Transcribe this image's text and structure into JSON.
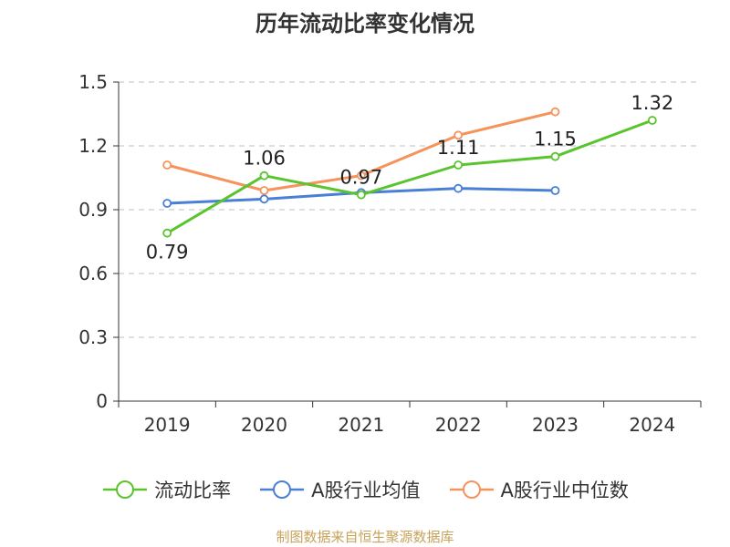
{
  "page": {
    "title": "历年流动比率变化情况",
    "footer": "制图数据来自恒生聚源数据库"
  },
  "chart_data": {
    "type": "line",
    "title": "历年流动比率变化情况",
    "xlabel": "",
    "ylabel": "",
    "categories": [
      "2019",
      "2020",
      "2021",
      "2022",
      "2023",
      "2024"
    ],
    "yticks": [
      "0",
      "0.3",
      "0.6",
      "0.9",
      "1.2",
      "1.5"
    ],
    "ylim": [
      0,
      1.5
    ],
    "grid": true,
    "legend_position": "bottom",
    "series": [
      {
        "name": "流动比率",
        "color": "#5ac42e",
        "values": [
          0.79,
          1.06,
          0.97,
          1.11,
          1.15,
          1.32
        ],
        "labels": [
          "0.79",
          "1.06",
          "0.97",
          "1.11",
          "1.15",
          "1.32"
        ]
      },
      {
        "name": "A股行业均值",
        "color": "#4a7fd6",
        "values": [
          0.93,
          0.95,
          0.98,
          1.0,
          0.99,
          null
        ]
      },
      {
        "name": "A股行业中位数",
        "color": "#f5935a",
        "values": [
          1.11,
          0.99,
          1.06,
          1.25,
          1.36,
          null
        ]
      }
    ]
  }
}
